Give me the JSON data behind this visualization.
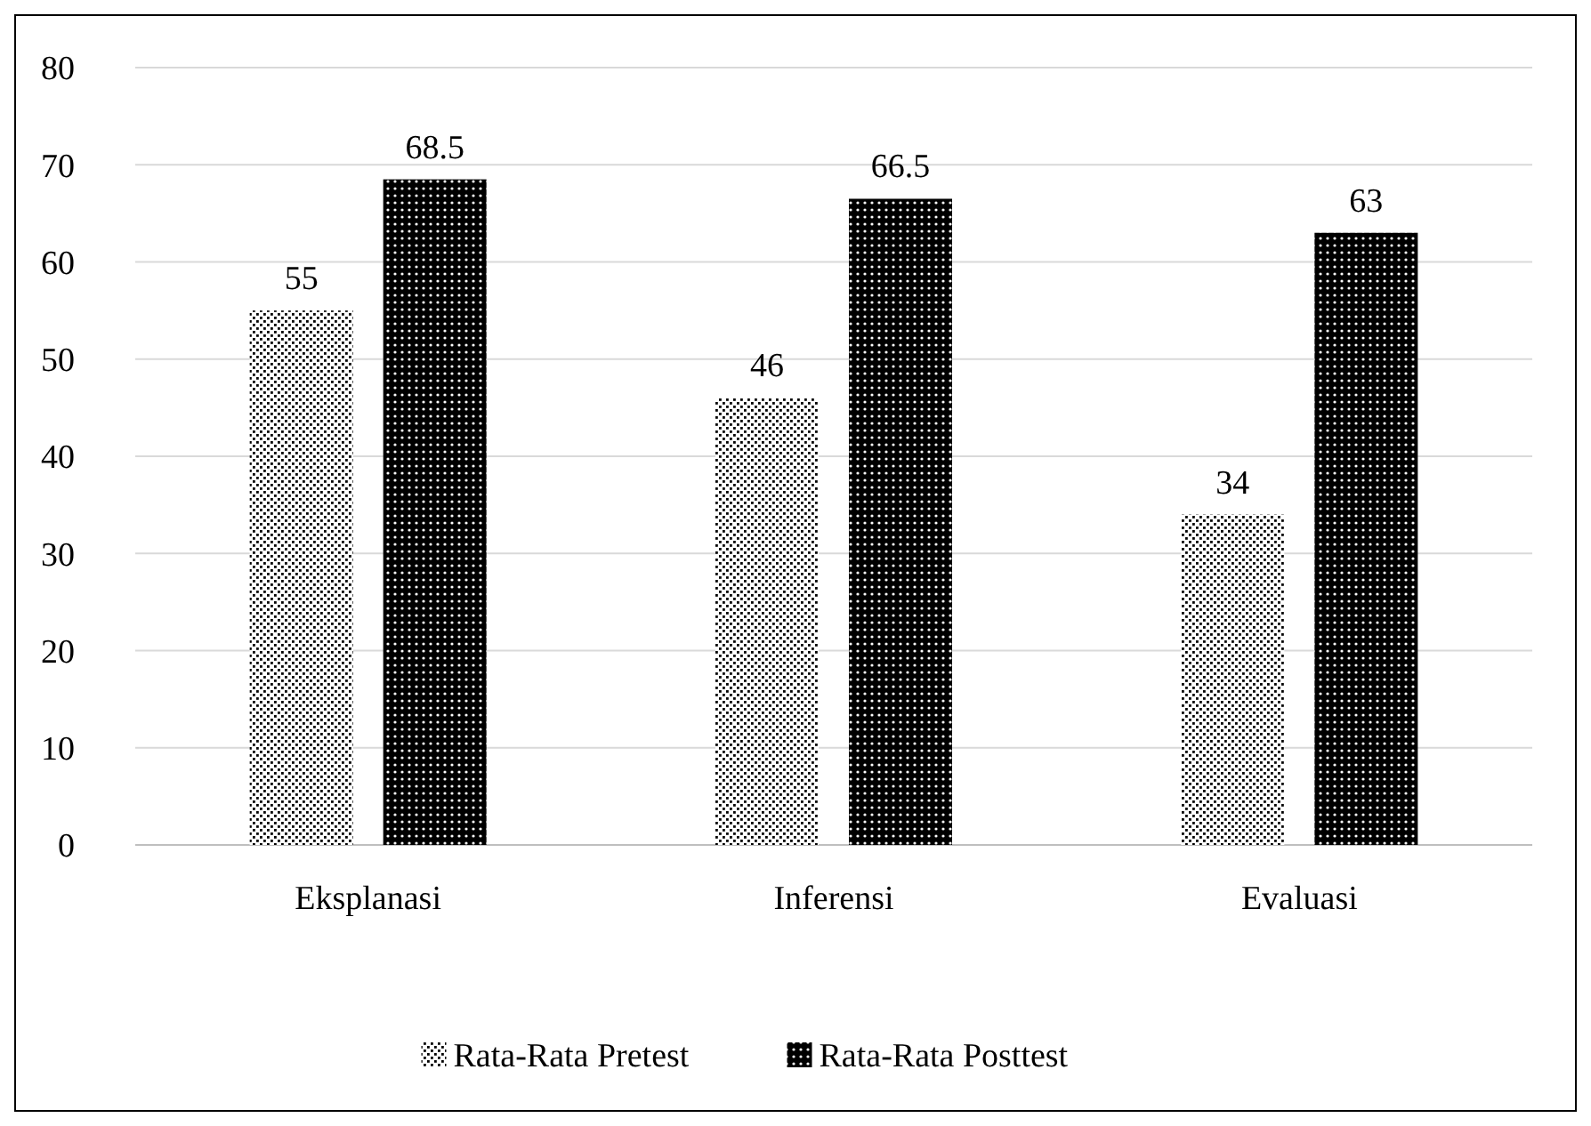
{
  "chart_data": {
    "type": "bar",
    "categories": [
      "Eksplanasi",
      "Inferensi",
      "Evaluasi"
    ],
    "series": [
      {
        "name": "Rata-Rata Pretest",
        "color": "#ffffff",
        "values": [
          55,
          46,
          34
        ]
      },
      {
        "name": "Rata-Rata Posttest",
        "color": "#000000",
        "values": [
          68.5,
          66.5,
          63
        ]
      }
    ],
    "ylim": [
      0,
      80
    ],
    "yticks": [
      0,
      10,
      20,
      30,
      40,
      50,
      60,
      70,
      80
    ],
    "grid": "y",
    "legend": "bottom",
    "data_labels": true
  }
}
